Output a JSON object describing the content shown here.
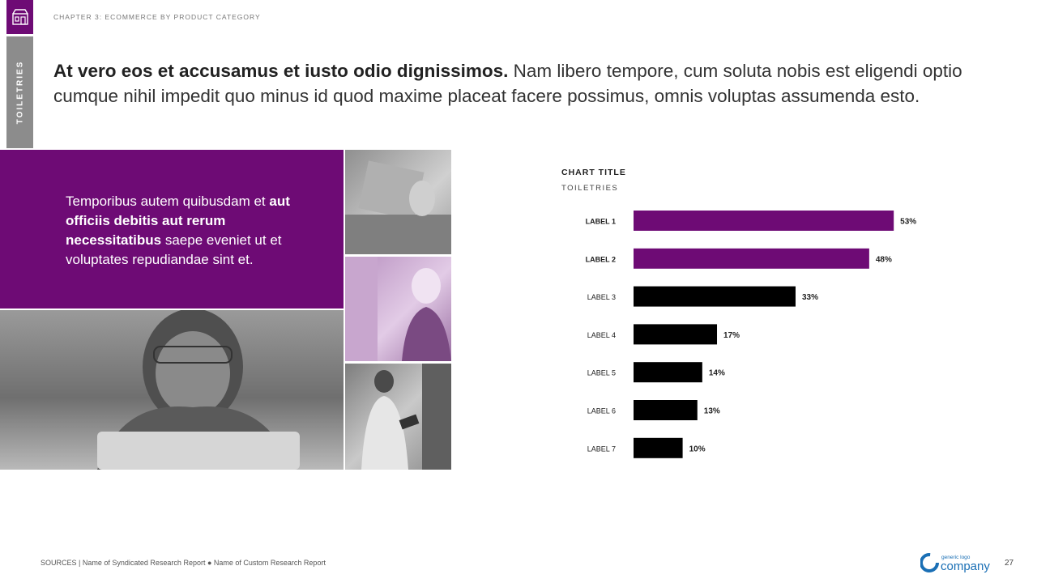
{
  "chapter": {
    "label": "CHAPTER 3: ECOMMERCE BY PRODUCT CATEGORY",
    "icon": "store-icon"
  },
  "side_tab": {
    "label": "TOILETRIES"
  },
  "headline": {
    "bold": "At vero eos et accusamus et iusto odio dignissimos.",
    "rest": "Nam libero tempore, cum soluta nobis est eligendi optio cumque nihil impedit quo minus id quod maxime placeat facere possimus, omnis voluptas assumenda esto."
  },
  "callout": {
    "part1": "Temporibus autem quibusdam et ",
    "bold": "aut officiis debitis aut rerum necessitatibus",
    "part2": " saepe eveniet ut et voluptates repudiandae sint et."
  },
  "colors": {
    "accent": "#6e0b75",
    "bar_default": "#000000",
    "side_tab": "#8c8c8c"
  },
  "chart_data": {
    "type": "bar",
    "orientation": "horizontal",
    "title": "CHART TITLE",
    "subtitle": "TOILETRIES",
    "categories": [
      "LABEL 1",
      "LABEL 2",
      "LABEL 3",
      "LABEL 4",
      "LABEL 5",
      "LABEL 6",
      "LABEL 7"
    ],
    "values": [
      53,
      48,
      33,
      17,
      14,
      13,
      10
    ],
    "value_labels": [
      "53%",
      "48%",
      "33%",
      "17%",
      "14%",
      "13%",
      "10%"
    ],
    "highlighted": [
      true,
      true,
      false,
      false,
      false,
      false,
      false
    ],
    "xlim": [
      0,
      60
    ],
    "unit": "%",
    "grid": false,
    "legend": "none"
  },
  "footer": {
    "sources_label": "SOURCES |",
    "sources_text": "Name of Syndicated Research Report  ● Name of Custom Research Report"
  },
  "logo": {
    "tagline": "generic logo",
    "name": "company"
  },
  "page_number": "27"
}
